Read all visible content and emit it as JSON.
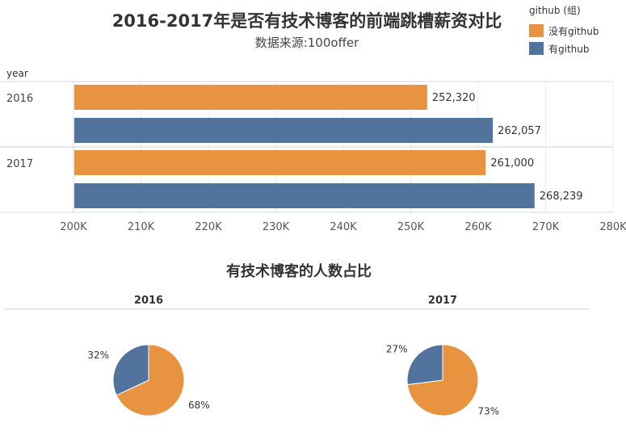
{
  "bar_chart": {
    "title": "2016-2017年是否有技术博客的前端跳槽薪资对比",
    "subtitle": "数据来源:100offer"
  },
  "legend": {
    "title": "github (组)",
    "items": [
      {
        "label": "没有github",
        "color": "#E8933F"
      },
      {
        "label": "有github",
        "color": "#52739E"
      }
    ]
  },
  "pies": {
    "title": "有技术博客的人数占比"
  },
  "chart_data": [
    {
      "type": "bar",
      "orientation": "horizontal",
      "title": "2016-2017年是否有技术博客的前端跳槽薪资对比",
      "subtitle": "数据来源:100offer",
      "ylabel": "year",
      "categories": [
        "2016",
        "2017"
      ],
      "series": [
        {
          "name": "没有github",
          "color": "#E8933F",
          "values": [
            252320,
            261000
          ],
          "labels": [
            "252,320",
            "261,000"
          ]
        },
        {
          "name": "有github",
          "color": "#52739E",
          "values": [
            262057,
            268239
          ],
          "labels": [
            "262,057",
            "268,239"
          ]
        }
      ],
      "xlim": [
        200000,
        280000
      ],
      "xticks": [
        200000,
        210000,
        220000,
        230000,
        240000,
        250000,
        260000,
        270000,
        280000
      ],
      "xtick_labels": [
        "200K",
        "210K",
        "220K",
        "230K",
        "240K",
        "250K",
        "260K",
        "270K",
        "280K"
      ],
      "grid": true,
      "legend_position": "top-right"
    },
    {
      "type": "pie",
      "title": "有技术博客的人数占比",
      "panels": [
        {
          "name": "2016",
          "slices": [
            {
              "name": "没有github",
              "value": 68,
              "label": "68%",
              "color": "#E8933F"
            },
            {
              "name": "有github",
              "value": 32,
              "label": "32%",
              "color": "#52739E"
            }
          ]
        },
        {
          "name": "2017",
          "slices": [
            {
              "name": "没有github",
              "value": 73,
              "label": "73%",
              "color": "#E8933F"
            },
            {
              "name": "有github",
              "value": 27,
              "label": "27%",
              "color": "#52739E"
            }
          ]
        }
      ]
    }
  ]
}
